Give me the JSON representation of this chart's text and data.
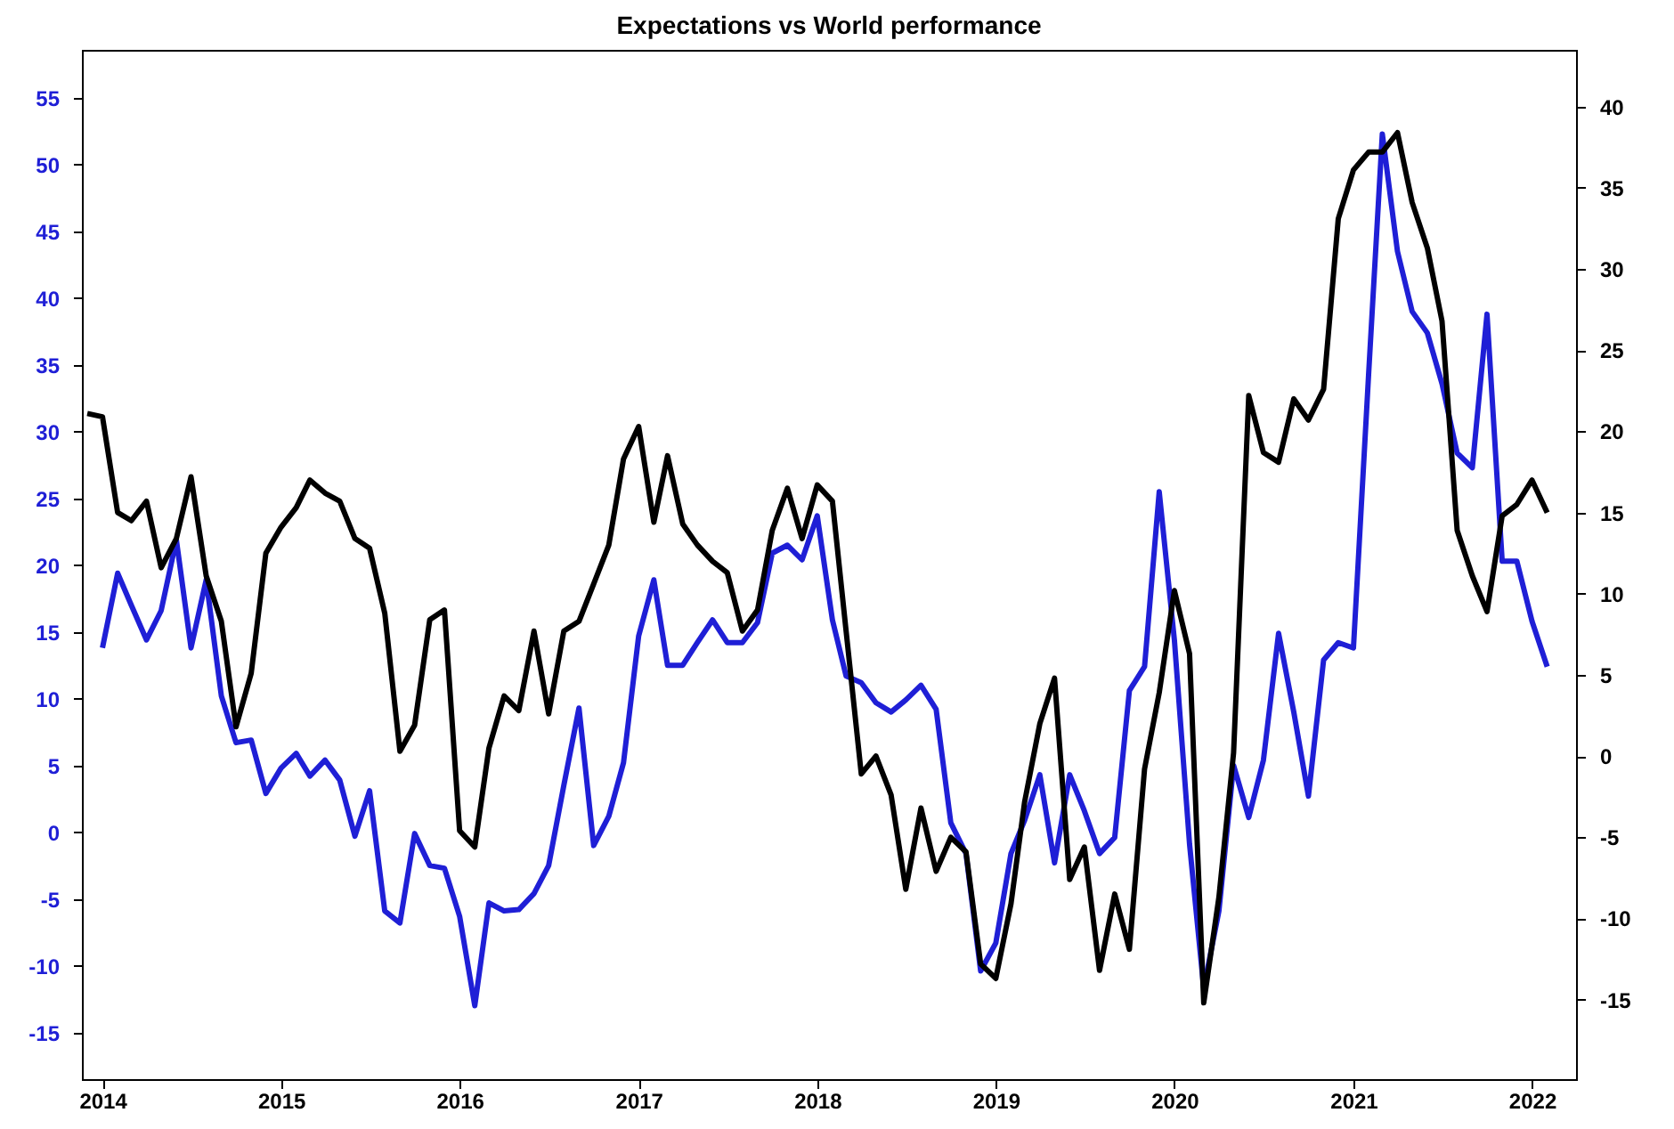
{
  "chart_data": {
    "type": "line",
    "title": "Expectations vs World performance",
    "x": [
      "2013-12",
      "2014-01",
      "2014-02",
      "2014-03",
      "2014-04",
      "2014-05",
      "2014-06",
      "2014-07",
      "2014-08",
      "2014-09",
      "2014-10",
      "2014-11",
      "2014-12",
      "2015-01",
      "2015-02",
      "2015-03",
      "2015-04",
      "2015-05",
      "2015-06",
      "2015-07",
      "2015-08",
      "2015-09",
      "2015-10",
      "2015-11",
      "2015-12",
      "2016-01",
      "2016-02",
      "2016-03",
      "2016-04",
      "2016-05",
      "2016-06",
      "2016-07",
      "2016-08",
      "2016-09",
      "2016-10",
      "2016-11",
      "2016-12",
      "2017-01",
      "2017-02",
      "2017-03",
      "2017-04",
      "2017-05",
      "2017-06",
      "2017-07",
      "2017-08",
      "2017-09",
      "2017-10",
      "2017-11",
      "2017-12",
      "2018-01",
      "2018-02",
      "2018-03",
      "2018-04",
      "2018-05",
      "2018-06",
      "2018-07",
      "2018-08",
      "2018-09",
      "2018-10",
      "2018-11",
      "2018-12",
      "2019-01",
      "2019-02",
      "2019-03",
      "2019-04",
      "2019-05",
      "2019-06",
      "2019-07",
      "2019-08",
      "2019-09",
      "2019-10",
      "2019-11",
      "2019-12",
      "2020-01",
      "2020-02",
      "2020-03",
      "2020-04",
      "2020-05",
      "2020-06",
      "2020-07",
      "2020-08",
      "2020-09",
      "2020-10",
      "2020-11",
      "2020-12",
      "2021-01",
      "2021-02",
      "2021-03",
      "2021-04",
      "2021-05",
      "2021-06",
      "2021-07",
      "2021-08",
      "2021-09",
      "2021-10",
      "2021-11",
      "2021-12",
      "2022-01",
      "2022-02"
    ],
    "xlim": [
      "2013-11-20",
      "2022-04-01"
    ],
    "xticks": [
      "2014",
      "2015",
      "2016",
      "2017",
      "2018",
      "2019",
      "2020",
      "2021",
      "2022"
    ],
    "ylim": [
      -18.5,
      58.6
    ],
    "yticks": [
      -15,
      -10,
      -5,
      0,
      5,
      10,
      15,
      20,
      25,
      30,
      35,
      40,
      45,
      50,
      55
    ],
    "y2lim": [
      -19.9,
      43.5
    ],
    "y2ticks": [
      -15,
      -10,
      -5,
      0,
      5,
      10,
      15,
      20,
      25,
      30,
      35,
      40
    ],
    "series": [
      {
        "color": "#1f1fd6",
        "axis": "y",
        "values": [
          null,
          13.8,
          19.4,
          17.0,
          14.4,
          16.6,
          21.9,
          13.8,
          18.9,
          10.2,
          6.7,
          6.9,
          2.9,
          4.8,
          5.9,
          4.2,
          5.4,
          3.9,
          -0.3,
          3.1,
          -5.9,
          -6.8,
          -0.1,
          -2.5,
          -2.7,
          -6.3,
          -13.0,
          -5.3,
          -5.9,
          -5.8,
          -4.6,
          -2.5,
          3.5,
          9.3,
          -1.0,
          1.2,
          5.2,
          14.7,
          18.9,
          12.5,
          12.5,
          14.2,
          15.9,
          14.2,
          14.2,
          15.7,
          20.9,
          21.5,
          20.4,
          23.7,
          15.9,
          11.7,
          11.2,
          9.7,
          9.0,
          9.9,
          11.0,
          9.2,
          0.7,
          -1.6,
          -10.4,
          -8.3,
          -1.6,
          0.9,
          4.3,
          -2.3,
          4.3,
          1.6,
          -1.6,
          -0.4,
          10.6,
          12.4,
          25.5,
          14.4,
          -0.9,
          -11.7,
          -5.9,
          5.0,
          1.1,
          5.4,
          14.9,
          9.0,
          2.7,
          12.9,
          14.2,
          13.8,
          34.3,
          52.3,
          43.5,
          39.0,
          37.4,
          33.6,
          28.4,
          27.3,
          38.8,
          20.3,
          20.3,
          15.8,
          12.4
        ]
      },
      {
        "color": "#000000",
        "axis": "y2",
        "values": [
          21.1,
          20.9,
          15.0,
          14.5,
          15.7,
          11.6,
          13.4,
          17.2,
          11.1,
          8.3,
          1.8,
          5.1,
          12.5,
          14.1,
          15.3,
          17.0,
          16.2,
          15.7,
          13.4,
          12.8,
          8.8,
          0.3,
          1.9,
          8.4,
          9.0,
          -4.6,
          -5.6,
          0.5,
          3.7,
          2.8,
          7.7,
          2.6,
          7.7,
          8.3,
          10.6,
          13.0,
          18.3,
          20.3,
          14.4,
          18.5,
          14.3,
          13.0,
          12.0,
          11.3,
          7.7,
          9.0,
          13.9,
          16.5,
          13.4,
          16.7,
          15.7,
          7.7,
          -1.1,
          0.0,
          -2.4,
          -8.2,
          -3.2,
          -7.1,
          -5.0,
          -5.9,
          -12.8,
          -13.7,
          -9.1,
          -2.8,
          2.0,
          4.8,
          -7.6,
          -5.6,
          -13.2,
          -8.5,
          -11.9,
          -0.8,
          3.9,
          10.2,
          6.3,
          -15.2,
          -8.7,
          0.2,
          22.2,
          18.7,
          18.1,
          22.0,
          20.7,
          22.6,
          33.1,
          36.1,
          37.2,
          37.2,
          38.4,
          34.1,
          31.3,
          26.8,
          13.9,
          11.1,
          8.9,
          14.8,
          15.5,
          17.0,
          15.0
        ]
      }
    ]
  }
}
